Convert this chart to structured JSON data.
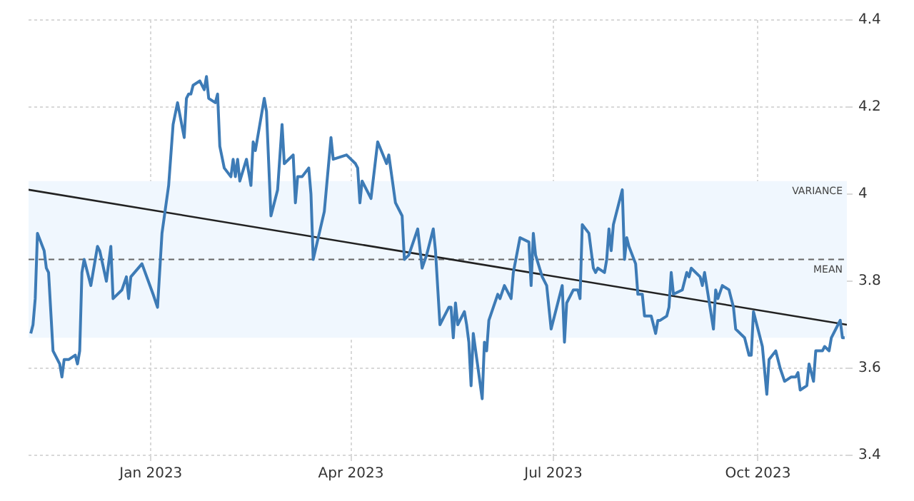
{
  "chart_data": {
    "type": "line",
    "xlim": [
      "2022-11-07",
      "2023-11-10"
    ],
    "ylim": [
      3.4,
      4.4
    ],
    "xticks": [
      {
        "value": "2023-01-01",
        "label": "Jan 2023"
      },
      {
        "value": "2023-04-01",
        "label": "Apr 2023"
      },
      {
        "value": "2023-07-01",
        "label": "Jul 2023"
      },
      {
        "value": "2023-10-01",
        "label": "Oct 2023"
      }
    ],
    "yticks": [
      3.4,
      3.6,
      3.8,
      4,
      4.2,
      4.4
    ],
    "grid": true,
    "legend": false,
    "series": [
      {
        "color": "#3d7bb6",
        "x": [
          "2022-11-08",
          "2022-11-09",
          "2022-11-10",
          "2022-11-11",
          "2022-11-14",
          "2022-11-15",
          "2022-11-16",
          "2022-11-17",
          "2022-11-18",
          "2022-11-21",
          "2022-11-22",
          "2022-11-23",
          "2022-11-25",
          "2022-11-28",
          "2022-11-29",
          "2022-11-30",
          "2022-12-01",
          "2022-12-02",
          "2022-12-05",
          "2022-12-08",
          "2022-12-09",
          "2022-12-12",
          "2022-12-14",
          "2022-12-15",
          "2022-12-19",
          "2022-12-21",
          "2022-12-22",
          "2022-12-23",
          "2022-12-28",
          "2023-01-02",
          "2023-01-04",
          "2023-01-06",
          "2023-01-09",
          "2023-01-11",
          "2023-01-13",
          "2023-01-16",
          "2023-01-17",
          "2023-01-18",
          "2023-01-19",
          "2023-01-20",
          "2023-01-23",
          "2023-01-25",
          "2023-01-26",
          "2023-01-27",
          "2023-01-30",
          "2023-01-31",
          "2023-02-01",
          "2023-02-03",
          "2023-02-06",
          "2023-02-07",
          "2023-02-08",
          "2023-02-09",
          "2023-02-10",
          "2023-02-13",
          "2023-02-15",
          "2023-02-16",
          "2023-02-17",
          "2023-02-21",
          "2023-02-22",
          "2023-02-24",
          "2023-02-27",
          "2023-03-01",
          "2023-03-02",
          "2023-03-06",
          "2023-03-07",
          "2023-03-08",
          "2023-03-10",
          "2023-03-13",
          "2023-03-14",
          "2023-03-15",
          "2023-03-20",
          "2023-03-23",
          "2023-03-24",
          "2023-03-30",
          "2023-04-03",
          "2023-04-04",
          "2023-04-05",
          "2023-04-06",
          "2023-04-10",
          "2023-04-13",
          "2023-04-17",
          "2023-04-18",
          "2023-04-21",
          "2023-04-24",
          "2023-04-25",
          "2023-04-27",
          "2023-05-01",
          "2023-05-03",
          "2023-05-05",
          "2023-05-08",
          "2023-05-09",
          "2023-05-11",
          "2023-05-15",
          "2023-05-16",
          "2023-05-17",
          "2023-05-18",
          "2023-05-19",
          "2023-05-22",
          "2023-05-23",
          "2023-05-24",
          "2023-05-25",
          "2023-05-26",
          "2023-05-30",
          "2023-05-31",
          "2023-06-01",
          "2023-06-02",
          "2023-06-06",
          "2023-06-07",
          "2023-06-09",
          "2023-06-12",
          "2023-06-13",
          "2023-06-16",
          "2023-06-20",
          "2023-06-21",
          "2023-06-22",
          "2023-06-23",
          "2023-06-26",
          "2023-06-28",
          "2023-06-30",
          "2023-07-03",
          "2023-07-05",
          "2023-07-06",
          "2023-07-07",
          "2023-07-10",
          "2023-07-12",
          "2023-07-13",
          "2023-07-14",
          "2023-07-17",
          "2023-07-19",
          "2023-07-20",
          "2023-07-21",
          "2023-07-24",
          "2023-07-25",
          "2023-07-26",
          "2023-07-27",
          "2023-07-28",
          "2023-08-01",
          "2023-08-02",
          "2023-08-03",
          "2023-08-04",
          "2023-08-07",
          "2023-08-08",
          "2023-08-10",
          "2023-08-11",
          "2023-08-14",
          "2023-08-16",
          "2023-08-17",
          "2023-08-18",
          "2023-08-21",
          "2023-08-22",
          "2023-08-23",
          "2023-08-24",
          "2023-08-28",
          "2023-08-30",
          "2023-08-31",
          "2023-09-01",
          "2023-09-05",
          "2023-09-06",
          "2023-09-07",
          "2023-09-11",
          "2023-09-12",
          "2023-09-13",
          "2023-09-15",
          "2023-09-18",
          "2023-09-19",
          "2023-09-20",
          "2023-09-21",
          "2023-09-25",
          "2023-09-27",
          "2023-09-28",
          "2023-09-29",
          "2023-10-03",
          "2023-10-05",
          "2023-10-06",
          "2023-10-09",
          "2023-10-11",
          "2023-10-13",
          "2023-10-16",
          "2023-10-18",
          "2023-10-19",
          "2023-10-20",
          "2023-10-23",
          "2023-10-24",
          "2023-10-26",
          "2023-10-27",
          "2023-10-30",
          "2023-10-31",
          "2023-11-02",
          "2023-11-03",
          "2023-11-06",
          "2023-11-07",
          "2023-11-08",
          "2023-11-09"
        ],
        "values": [
          3.68,
          3.7,
          3.76,
          3.91,
          3.87,
          3.83,
          3.82,
          3.73,
          3.64,
          3.61,
          3.58,
          3.62,
          3.62,
          3.63,
          3.61,
          3.64,
          3.82,
          3.85,
          3.79,
          3.88,
          3.87,
          3.8,
          3.88,
          3.76,
          3.78,
          3.81,
          3.76,
          3.81,
          3.84,
          3.77,
          3.74,
          3.91,
          4.02,
          4.16,
          4.21,
          4.13,
          4.22,
          4.23,
          4.23,
          4.25,
          4.26,
          4.24,
          4.27,
          4.22,
          4.21,
          4.23,
          4.11,
          4.06,
          4.04,
          4.08,
          4.04,
          4.08,
          4.03,
          4.08,
          4.02,
          4.12,
          4.1,
          4.22,
          4.19,
          3.95,
          4.01,
          4.16,
          4.07,
          4.09,
          3.98,
          4.04,
          4.04,
          4.06,
          4,
          3.85,
          3.96,
          4.13,
          4.08,
          4.09,
          4.07,
          4.06,
          3.98,
          4.03,
          3.99,
          4.12,
          4.07,
          4.09,
          3.98,
          3.95,
          3.85,
          3.86,
          3.92,
          3.83,
          3.86,
          3.92,
          3.87,
          3.7,
          3.74,
          3.74,
          3.67,
          3.75,
          3.7,
          3.73,
          3.7,
          3.66,
          3.56,
          3.68,
          3.53,
          3.66,
          3.64,
          3.71,
          3.77,
          3.76,
          3.79,
          3.76,
          3.82,
          3.9,
          3.89,
          3.79,
          3.91,
          3.86,
          3.81,
          3.79,
          3.69,
          3.75,
          3.79,
          3.66,
          3.75,
          3.78,
          3.78,
          3.76,
          3.93,
          3.91,
          3.83,
          3.82,
          3.83,
          3.82,
          3.85,
          3.92,
          3.87,
          3.93,
          4.01,
          3.85,
          3.9,
          3.88,
          3.84,
          3.77,
          3.77,
          3.72,
          3.72,
          3.68,
          3.71,
          3.71,
          3.72,
          3.74,
          3.82,
          3.77,
          3.78,
          3.82,
          3.81,
          3.83,
          3.81,
          3.79,
          3.82,
          3.69,
          3.78,
          3.76,
          3.79,
          3.78,
          3.76,
          3.74,
          3.69,
          3.67,
          3.63,
          3.63,
          3.73,
          3.65,
          3.54,
          3.62,
          3.64,
          3.6,
          3.57,
          3.58,
          3.58,
          3.59,
          3.55,
          3.56,
          3.61,
          3.57,
          3.64,
          3.64,
          3.65,
          3.64,
          3.67,
          3.7,
          3.71,
          3.67,
          3.67
        ]
      },
      {
        "type": "line",
        "color": "#222222",
        "x": [
          "2022-11-07",
          "2023-11-10"
        ],
        "values": [
          4.01,
          3.7
        ]
      }
    ],
    "ref_lines": [
      {
        "axis": "y",
        "value": 3.85,
        "label": "MEAN",
        "color": "#666666",
        "line_style": "dashed"
      }
    ],
    "bands": [
      {
        "axis": "y",
        "from": 3.67,
        "to": 4.03,
        "label": "VARIANCE",
        "color": "#f0f7fe"
      }
    ]
  }
}
